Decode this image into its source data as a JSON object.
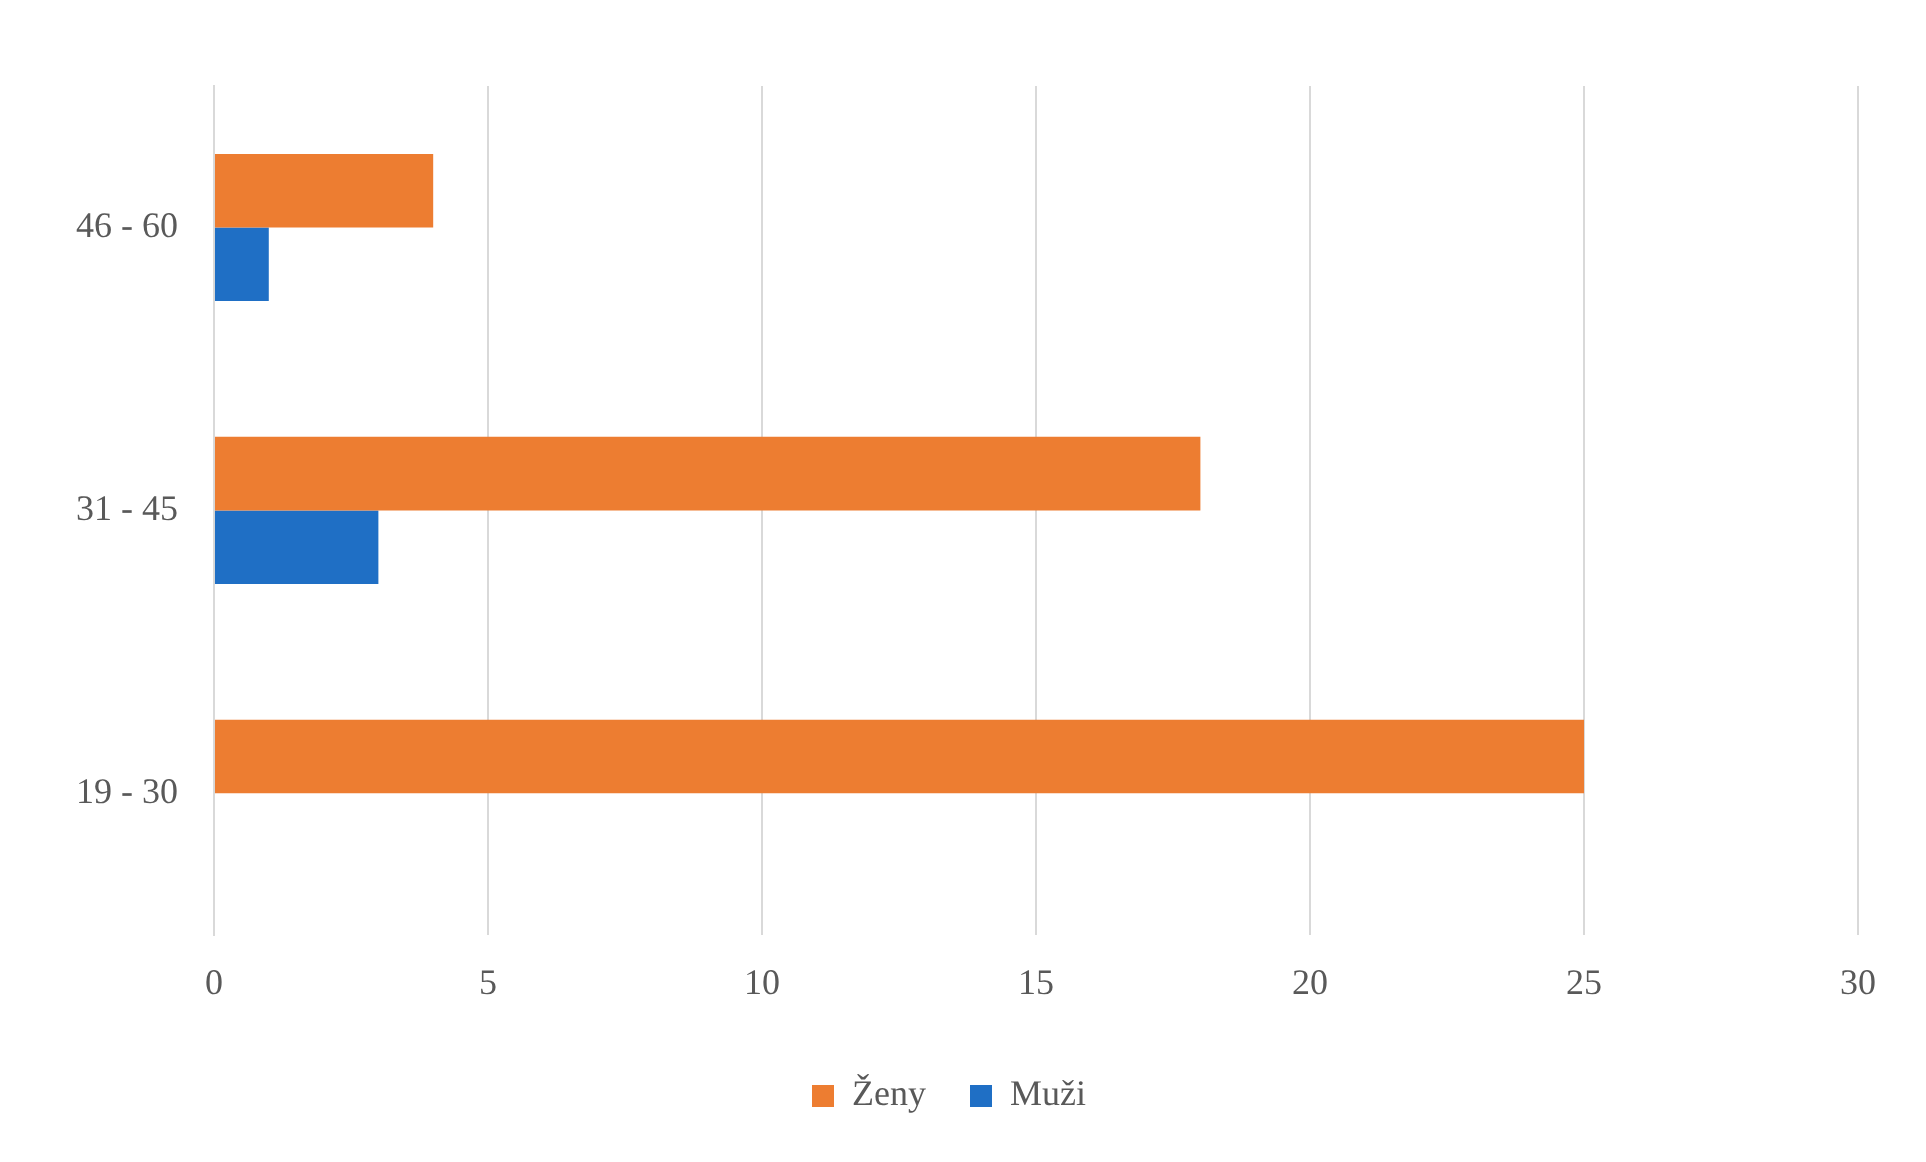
{
  "chart_data": {
    "type": "bar",
    "orientation": "horizontal",
    "categories": [
      "46 - 60",
      "31 - 45",
      "19 - 30"
    ],
    "series": [
      {
        "name": "Ženy",
        "color": "#ed7d31",
        "values": [
          4,
          18,
          25
        ]
      },
      {
        "name": "Muži",
        "color": "#1f6fc5",
        "values": [
          1,
          3,
          0
        ]
      }
    ],
    "xlim": [
      0,
      30
    ],
    "xticks": [
      0,
      5,
      10,
      15,
      20,
      25,
      30
    ],
    "grid": "x",
    "legend": "bottom"
  }
}
